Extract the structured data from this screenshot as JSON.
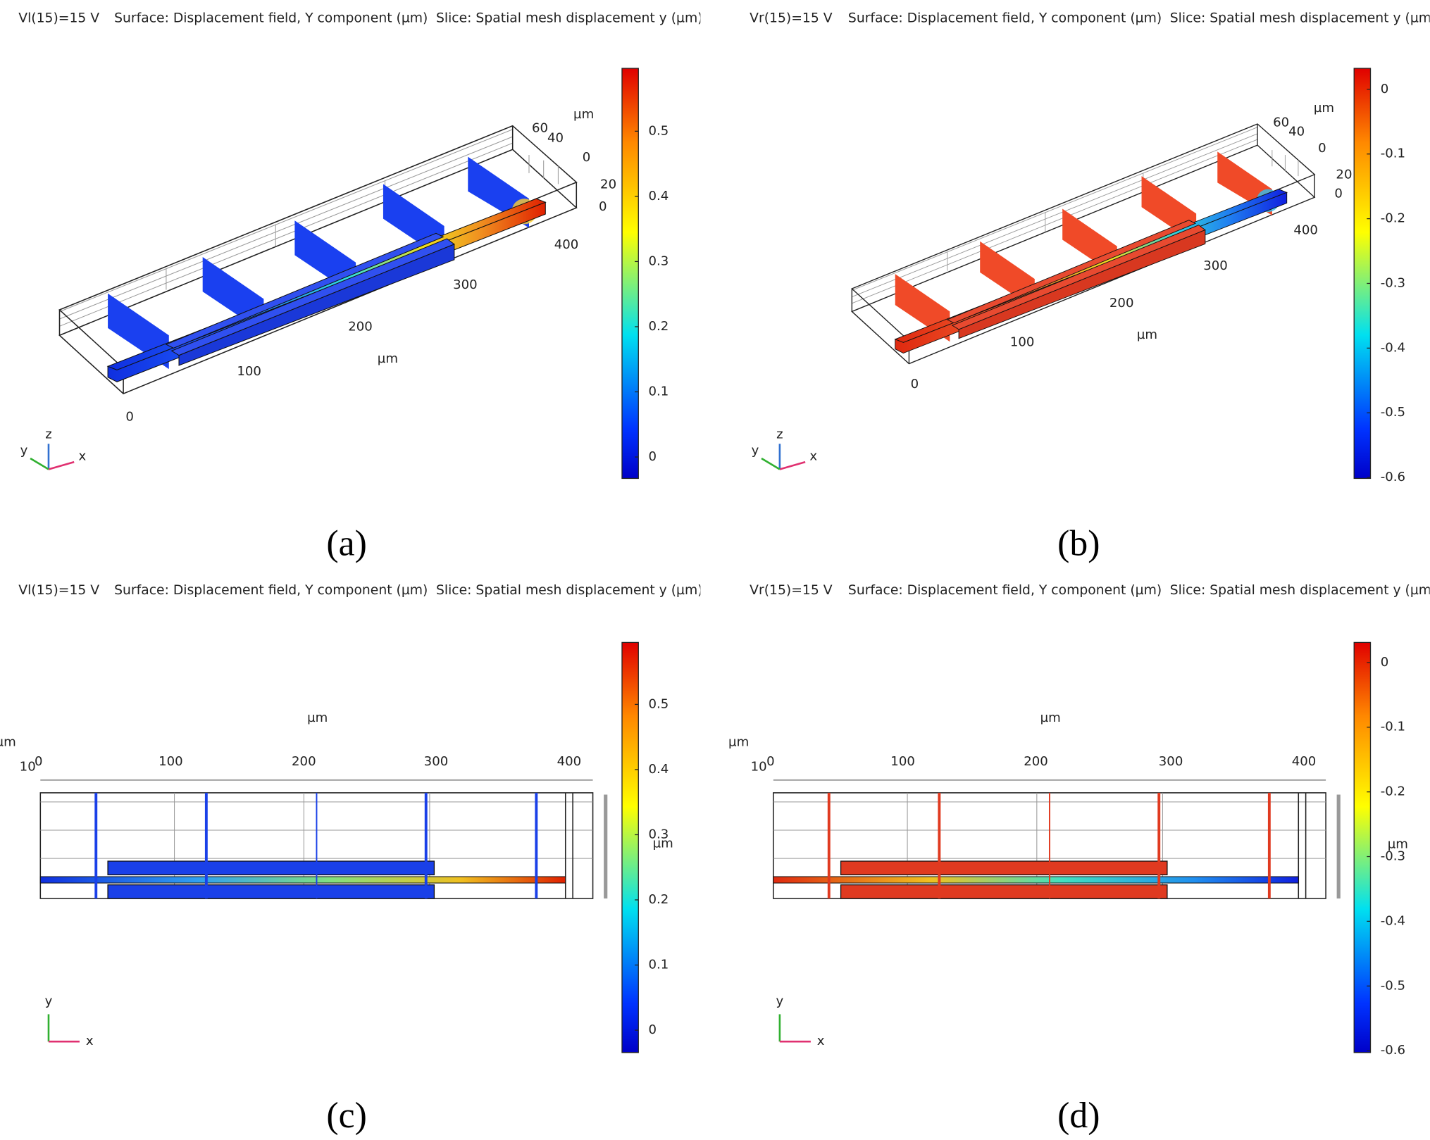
{
  "panels": [
    {
      "header": [
        "Vl(15)=15 V",
        "Surface: Displacement field, Y component (µm)",
        "Slice: Spatial mesh displacement y (µm)"
      ],
      "colorbar_ticks": [
        0.5,
        0.4,
        0.3,
        0.2,
        0.1,
        0
      ],
      "axis_labels": [
        0,
        100,
        200,
        300,
        400,
        "µm",
        60,
        40,
        0,
        20,
        0,
        "µm"
      ],
      "triad": [
        "z",
        "y",
        "x"
      ],
      "caption": "(a)"
    },
    {
      "header": [
        "Vr(15)=15 V",
        "Surface: Displacement field, Y component (µm)",
        "Slice: Spatial mesh displacement y (µm)"
      ],
      "colorbar_ticks": [
        0,
        -0.1,
        -0.2,
        -0.3,
        -0.4,
        -0.5,
        -0.6
      ],
      "axis_labels": [
        0,
        100,
        200,
        300,
        400,
        "µm",
        60,
        40,
        0,
        20,
        0,
        "µm"
      ],
      "triad": [
        "z",
        "y",
        "x"
      ],
      "caption": "(b)"
    },
    {
      "header": [
        "Vl(15)=15 V",
        "Surface: Displacement field, Y component (µm)",
        "Slice: Spatial mesh displacement y (µm)"
      ],
      "colorbar_ticks": [
        0.5,
        0.4,
        0.3,
        0.2,
        0.1,
        0
      ],
      "axis_labels": [
        "µm",
        10,
        0,
        100,
        200,
        300,
        400,
        "µm",
        "µm"
      ],
      "triad": [
        "y",
        "x"
      ],
      "caption": "(c)"
    },
    {
      "header": [
        "Vr(15)=15 V",
        "Surface: Displacement field, Y component (µm)",
        "Slice: Spatial mesh displacement y (µm)"
      ],
      "colorbar_ticks": [
        0,
        -0.1,
        -0.2,
        -0.3,
        -0.4,
        -0.5,
        -0.6
      ],
      "axis_labels": [
        "µm",
        10,
        0,
        100,
        200,
        300,
        400,
        "µm",
        "µm"
      ],
      "triad": [
        "y",
        "x"
      ],
      "caption": "(d)"
    }
  ]
}
